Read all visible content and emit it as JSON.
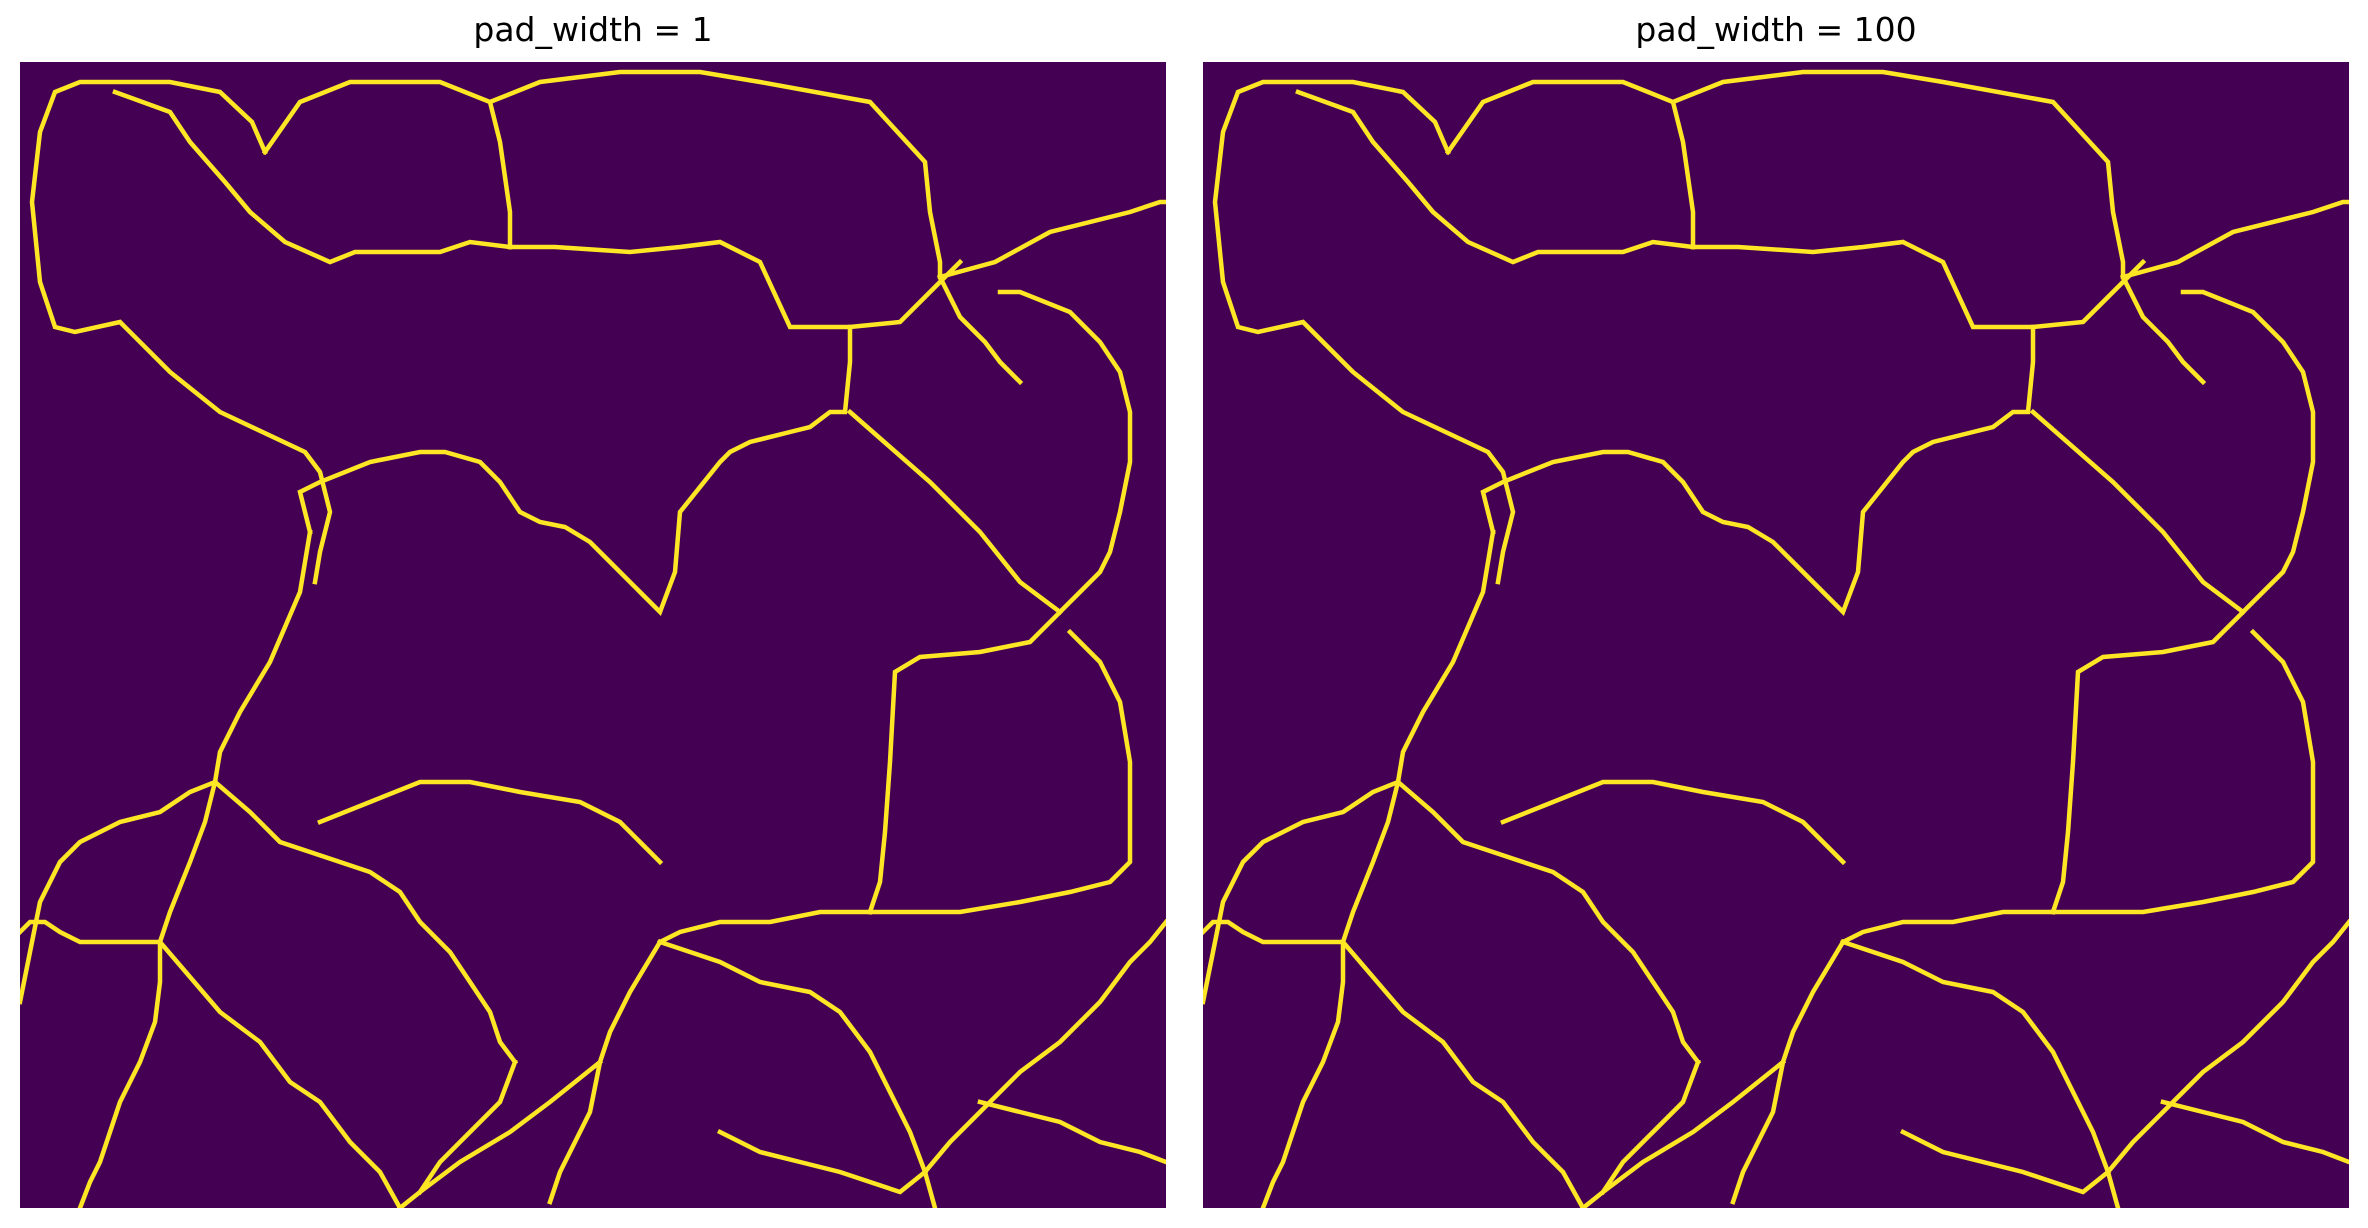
{
  "figure": {
    "panels": [
      {
        "title": "pad_width = 1",
        "image": "voronoi-segmentation-boundaries"
      },
      {
        "title": "pad_width = 100",
        "image": "voronoi-segmentation-boundaries"
      }
    ]
  },
  "colors": {
    "background": "#440154",
    "boundary": "#fde725",
    "page": "#ffffff"
  }
}
